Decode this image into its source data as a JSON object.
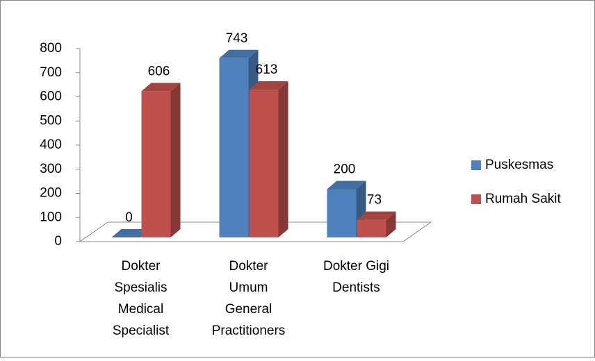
{
  "chart_data": {
    "type": "bar3d",
    "categories": [
      "Dokter\nSpesialis\nMedical\nSpecialist",
      "Dokter\nUmum\nGeneral\nPractitioners",
      "Dokter Gigi\nDentists"
    ],
    "series": [
      {
        "name": "Puskesmas",
        "color": "#4f81bd",
        "values": [
          0,
          743,
          200
        ]
      },
      {
        "name": "Rumah Sakit",
        "color": "#c0504d",
        "values": [
          606,
          613,
          73
        ]
      }
    ],
    "ylim": [
      0,
      800
    ],
    "yticks": [
      0,
      100,
      200,
      300,
      400,
      500,
      600,
      700,
      800
    ],
    "legend": "right"
  }
}
